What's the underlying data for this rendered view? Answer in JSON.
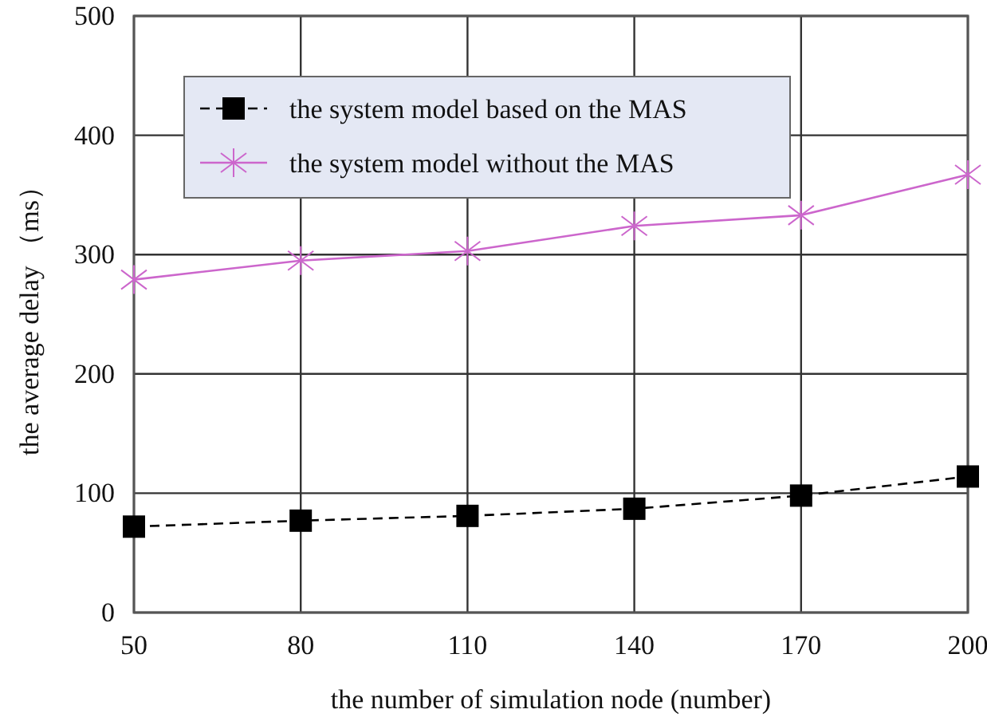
{
  "chart_data": {
    "type": "line",
    "xlabel": "the number of simulation node  (number)",
    "ylabel": "the average delay （ms）",
    "x": [
      50,
      80,
      110,
      140,
      170,
      200
    ],
    "series": [
      {
        "name": "the system model based on the MAS",
        "color": "#000000",
        "marker": "square",
        "line_style": "dashed",
        "values": [
          72,
          77,
          81,
          87,
          98,
          114
        ]
      },
      {
        "name": "the system model without the MAS",
        "color": "#cc66cc",
        "marker": "cross",
        "line_style": "solid",
        "values": [
          279,
          295,
          303,
          324,
          333,
          367
        ]
      }
    ],
    "xlim": [
      50,
      200
    ],
    "xticks": [
      50,
      80,
      110,
      140,
      170,
      200
    ],
    "ylim": [
      0,
      500
    ],
    "yticks": [
      0,
      100,
      200,
      300,
      400,
      500
    ],
    "grid": true,
    "legend": "top"
  }
}
